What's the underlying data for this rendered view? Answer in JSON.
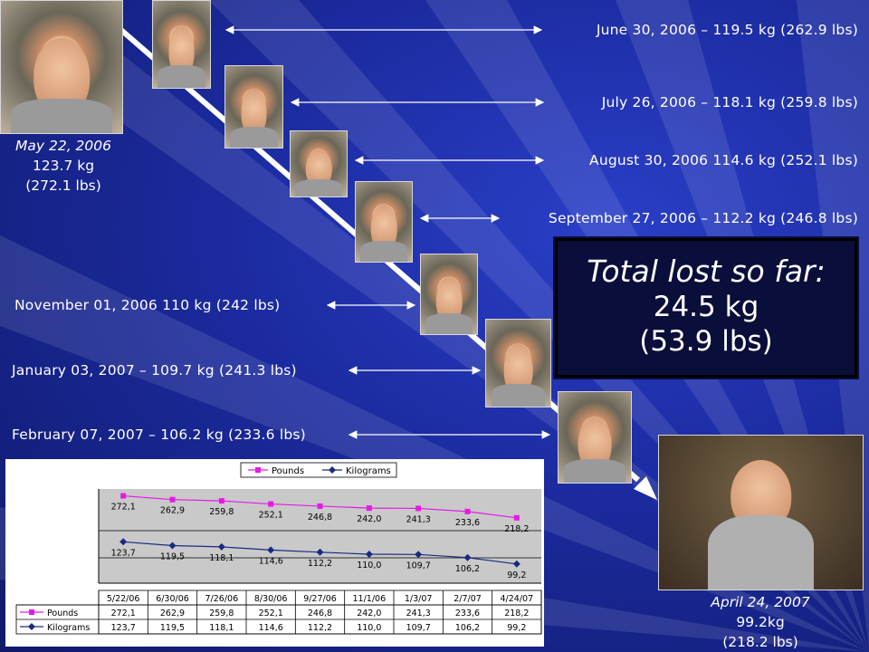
{
  "start": {
    "date": "May 22, 2006",
    "kg": "123.7 kg",
    "lbs": "(272.1 lbs)"
  },
  "end": {
    "date": "April 24, 2007",
    "kg": "99.2kg",
    "lbs": "(218.2 lbs)"
  },
  "entries": [
    "June 30, 2006 – 119.5 kg (262.9 lbs)",
    "July 26, 2006 – 118.1 kg (259.8 lbs)",
    "August 30, 2006 114.6 kg (252.1 lbs)",
    "September 27, 2006 –  112.2 kg (246.8 lbs)",
    "November 01, 2006 110 kg (242 lbs)",
    "January 03, 2007 – 109.7 kg (241.3 lbs)",
    "February 07, 2007 – 106.2 kg (233.6 lbs)"
  ],
  "total": {
    "title": "Total lost so far:",
    "kg": "24.5 kg",
    "lbs": "(53.9 lbs)"
  },
  "colors": {
    "pounds": "#e619e6",
    "kilograms": "#1a2a80",
    "background": "#1b2a9e"
  },
  "chart_data": {
    "type": "line",
    "legend": [
      "Pounds",
      "Kilograms"
    ],
    "legend_position": "top",
    "categories": [
      "5/22/06",
      "6/30/06",
      "7/26/06",
      "8/30/06",
      "9/27/06",
      "11/1/06",
      "1/3/07",
      "2/7/07",
      "4/24/07"
    ],
    "series": [
      {
        "name": "Pounds",
        "values": [
          272.1,
          262.9,
          259.8,
          252.1,
          246.8,
          242.0,
          241.3,
          233.6,
          218.2
        ],
        "labels": [
          "272,1",
          "262,9",
          "259,8",
          "252,1",
          "246,8",
          "242,0",
          "241,3",
          "233,6",
          "218,2"
        ]
      },
      {
        "name": "Kilograms",
        "values": [
          123.7,
          119.5,
          118.1,
          114.6,
          112.2,
          110.0,
          109.7,
          106.2,
          99.2
        ],
        "labels": [
          "123,7",
          "119,5",
          "118,1",
          "114,6",
          "112,2",
          "110,0",
          "109,7",
          "106,2",
          "99,2"
        ]
      }
    ],
    "ylim": [
      80,
      280
    ],
    "grid": true,
    "data_table": true
  }
}
